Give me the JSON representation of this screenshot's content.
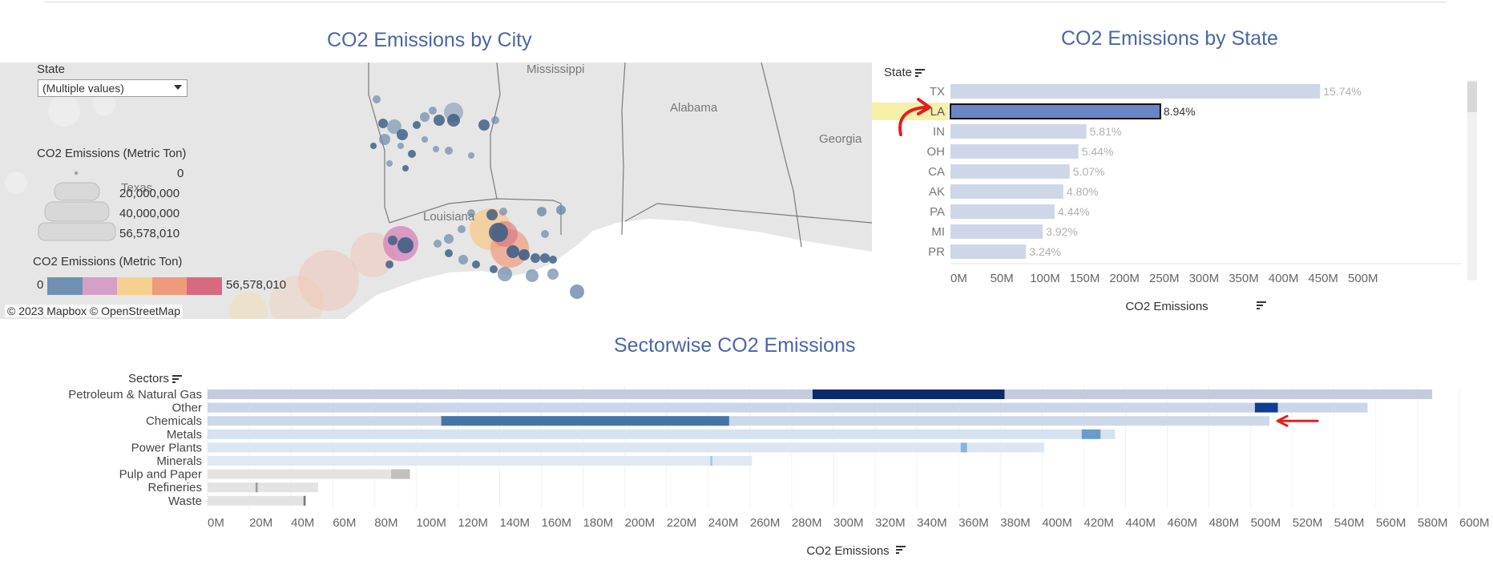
{
  "titles": {
    "map": "CO2 Emissions by City",
    "state": "CO2 Emissions by State",
    "sector": "Sectorwise CO2 Emissions"
  },
  "map": {
    "filter_label": "State",
    "filter_value": "(Multiple values)",
    "size_legend_title": "CO2 Emissions (Metric Ton)",
    "size_legend_values": [
      "0",
      "20,000,000",
      "40,000,000",
      "56,578,010"
    ],
    "color_legend_title": "CO2 Emissions (Metric Ton)",
    "color_min": "0",
    "color_max": "56,578,010",
    "color_ramp": [
      "#7090b4",
      "#d4a0c8",
      "#f5d090",
      "#ef9a7a",
      "#d66a80"
    ],
    "attribution": "© 2023 Mapbox  © OpenStreetMap",
    "place_labels": {
      "mississippi": "Mississippi",
      "alabama": "Alabama",
      "georgia": "Georgia",
      "louisiana": "Louisiana",
      "texas": "Texas"
    }
  },
  "chart_data": [
    {
      "type": "bar",
      "orientation": "horizontal",
      "title": "CO2 Emissions by State",
      "dimension_label": "State",
      "xlabel": "CO2 Emissions",
      "categories": [
        "TX",
        "LA",
        "IN",
        "OH",
        "CA",
        "AK",
        "PA",
        "MI",
        "PR"
      ],
      "values": [
        465,
        264,
        171,
        161,
        150,
        142,
        131,
        116,
        95
      ],
      "data_labels": [
        "15.74%",
        "8.94%",
        "5.81%",
        "5.44%",
        "5.07%",
        "4.80%",
        "4.44%",
        "3.92%",
        "3.24%"
      ],
      "highlighted": "LA",
      "xticks": [
        "0M",
        "50M",
        "100M",
        "150M",
        "200M",
        "250M",
        "300M",
        "350M",
        "400M",
        "450M",
        "500M"
      ],
      "xlim": [
        0,
        520
      ],
      "colors": {
        "highlight": "#6a86c8",
        "muted": "#cfd6e8",
        "label_muted": "#b0b0b0"
      }
    },
    {
      "type": "bar",
      "orientation": "horizontal",
      "stacked": true,
      "title": "Sectorwise CO2 Emissions",
      "dimension_label": "Sectors",
      "xlabel": "CO2 Emissions",
      "categories": [
        "Petroleum & Natural Gas",
        "Other",
        "Chemicals",
        "Metals",
        "Power Plants",
        "Minerals",
        "Pulp and Paper",
        "Refineries",
        "Waste"
      ],
      "values": [
        587,
        556,
        509,
        435,
        401,
        261,
        97,
        53,
        47
      ],
      "highlight_ranges": [
        [
          290,
          382
        ],
        [
          502,
          513
        ],
        [
          112,
          250
        ],
        [
          419,
          428
        ],
        [
          361,
          364
        ],
        [
          241,
          242
        ],
        [
          88,
          97
        ],
        [
          23,
          24
        ],
        [
          46,
          47
        ]
      ],
      "xticks": [
        "0M",
        "20M",
        "40M",
        "60M",
        "80M",
        "100M",
        "120M",
        "140M",
        "160M",
        "180M",
        "200M",
        "220M",
        "240M",
        "260M",
        "280M",
        "300M",
        "320M",
        "340M",
        "360M",
        "380M",
        "400M",
        "420M",
        "440M",
        "460M",
        "480M",
        "500M",
        "520M",
        "540M",
        "560M",
        "580M",
        "600M"
      ],
      "xlim": [
        0,
        610
      ],
      "colors": {
        "base": [
          "#c3cbdd",
          "#c8d5ea",
          "#cdd9e8",
          "#d6e2ef",
          "#dbe6f2",
          "#e0e9f3",
          "#e3e3e3",
          "#e3e3e3",
          "#e3e3e3"
        ],
        "highlight": [
          "#0a2a6a",
          "#0f3c94",
          "#4476a8",
          "#6b9bcc",
          "#86b3e0",
          "#a8c4e0",
          "#c0c0c0",
          "#999999",
          "#777777"
        ]
      }
    }
  ]
}
